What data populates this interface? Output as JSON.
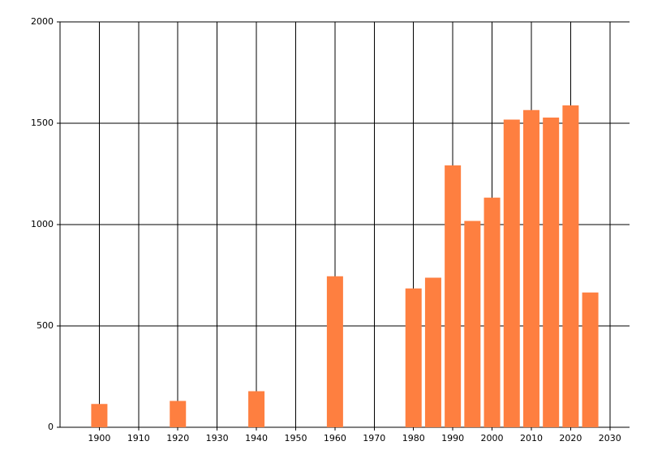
{
  "chart_data": {
    "type": "bar",
    "x": [
      1900,
      1920,
      1940,
      1960,
      1980,
      1985,
      1990,
      1995,
      2000,
      2005,
      2010,
      2015,
      2020,
      2025
    ],
    "values": [
      115,
      130,
      178,
      745,
      685,
      738,
      1292,
      1018,
      1133,
      1518,
      1565,
      1528,
      1588,
      665
    ],
    "color": "#fe7f40",
    "xlim": [
      1890,
      2035
    ],
    "xticks": [
      1900,
      1910,
      1920,
      1930,
      1940,
      1950,
      1960,
      1970,
      1980,
      1990,
      2000,
      2010,
      2020,
      2030
    ],
    "ylim": [
      0,
      2000
    ],
    "yticks": [
      0,
      500,
      1000,
      1500,
      2000
    ],
    "grid": true
  }
}
